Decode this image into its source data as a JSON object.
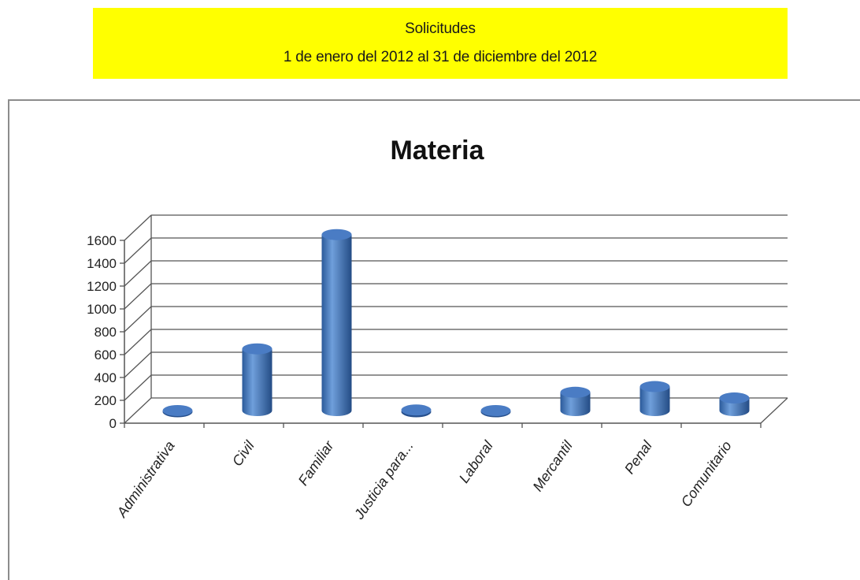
{
  "header": {
    "line1": "Solicitudes",
    "line2": "1 de enero del 2012 al 31 de diciembre del 2012"
  },
  "colors": {
    "banner": "#ffff00",
    "bar_side": "#2e5e9e",
    "bar_light": "#6f9fdb",
    "bar_top": "#4a7cc4"
  },
  "chart_data": {
    "type": "bar",
    "title": "Materia",
    "xlabel": "",
    "ylabel": "",
    "categories": [
      "Administrativa",
      "Civil",
      "Familiar",
      "Justicia para...",
      "Laboral",
      "Mercantil",
      "Penal",
      "Comunitario"
    ],
    "values": [
      0,
      540,
      1540,
      5,
      0,
      160,
      210,
      110
    ],
    "ylim": [
      0,
      1600
    ],
    "yticks": [
      0,
      200,
      400,
      600,
      800,
      1000,
      1200,
      1400,
      1600
    ],
    "grid": true,
    "legend": "none",
    "style": "3d-cylinder"
  }
}
